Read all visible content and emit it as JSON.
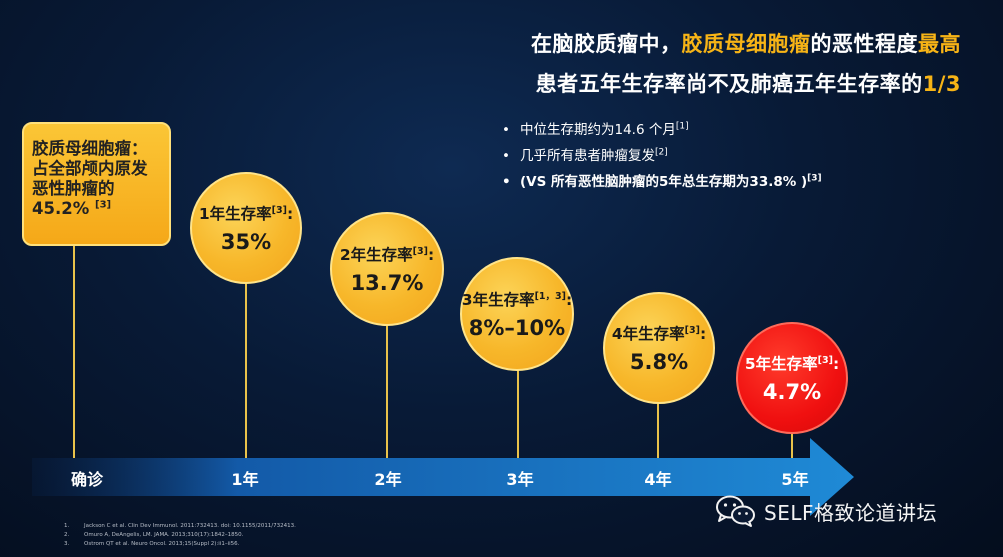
{
  "title": {
    "line1_pre": "在脑胶质瘤中，",
    "line1_highlight": "胶质母细胞瘤",
    "line1_mid": "的恶性程度",
    "line1_highlight2": "最高",
    "line2_pre": "患者五年生存率尚不及肺癌五年生存率的",
    "line2_highlight": "1/3"
  },
  "bullets": [
    {
      "text": "中位生存期约为14.6 个月",
      "ref": "[1]"
    },
    {
      "text": "几乎所有患者肿瘤复发",
      "ref": "[2]"
    },
    {
      "text": "(VS 所有恶性脑肿瘤的5年总生存期为33.8% )",
      "ref": "[3]"
    }
  ],
  "box": {
    "line1": "胶质母细胞瘤：",
    "line2": "占全部颅内原发",
    "line3": "恶性肿瘤的",
    "value": "45.2% ",
    "ref": "[3]"
  },
  "circles": [
    {
      "label": "1年生存率",
      "ref": "[3]",
      "suffix": ":",
      "value": "35%"
    },
    {
      "label": "2年生存率",
      "ref": "[3]",
      "suffix": ":",
      "value": "13.7%"
    },
    {
      "label": "3年生存率",
      "ref": "[1，3]",
      "suffix": ":",
      "value": "8%–10%"
    },
    {
      "label": "4年生存率",
      "ref": "[3]",
      "suffix": ":",
      "value": "5.8%"
    },
    {
      "label": "5年生存率",
      "ref": "[3]",
      "suffix": ":",
      "value": "4.7%"
    }
  ],
  "timeline": [
    "确诊",
    "1年",
    "2年",
    "3年",
    "4年",
    "5年"
  ],
  "references": [
    {
      "n": "1.",
      "text": "Jackson C et al. Clin Dev Immunol. 2011:732413. doi: 10.1155/2011/732413."
    },
    {
      "n": "2.",
      "text": "Omuro A, DeAngelis, LM. JAMA. 2013;310(17):1842–1850."
    },
    {
      "n": "3.",
      "text": "Ostrom QT et al. Neuro Oncol. 2013;15(Suppl 2):ii1–ii56."
    }
  ],
  "logo_text": "SELF格致论道讲坛",
  "colors": {
    "highlight": "#f7b416",
    "circle": "#f7b72a",
    "red_circle": "#f01010",
    "arrow": "#1f8ad6"
  },
  "icons": [
    "wechat-icon"
  ]
}
